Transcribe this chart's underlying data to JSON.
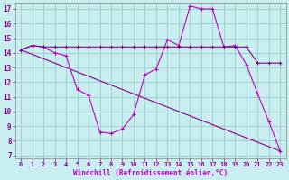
{
  "xlabel": "Windchill (Refroidissement éolien,°C)",
  "bg_color": "#c8eef0",
  "line_color": "#bb00bb",
  "line_color2": "#880088",
  "grid_color": "#99cccc",
  "series1_x": [
    0,
    1,
    2,
    3,
    4,
    5,
    6,
    7,
    8,
    9,
    10,
    11,
    12,
    13,
    14,
    15,
    16,
    17,
    18,
    19,
    20,
    21,
    22,
    23
  ],
  "series1_y": [
    14.2,
    14.5,
    14.4,
    14.0,
    13.8,
    11.5,
    11.1,
    8.6,
    8.5,
    8.8,
    9.8,
    12.5,
    12.9,
    14.9,
    14.5,
    17.2,
    17.0,
    17.0,
    14.4,
    14.5,
    13.2,
    11.2,
    9.3,
    7.3
  ],
  "series2_x": [
    0,
    1,
    2,
    3,
    4,
    5,
    6,
    7,
    8,
    9,
    10,
    11,
    12,
    13,
    14,
    15,
    16,
    17,
    18,
    19,
    20,
    21,
    22,
    23
  ],
  "series2_y": [
    14.2,
    14.5,
    14.4,
    14.4,
    14.4,
    14.4,
    14.4,
    14.4,
    14.4,
    14.4,
    14.4,
    14.4,
    14.4,
    14.4,
    14.4,
    14.4,
    14.4,
    14.4,
    14.4,
    14.4,
    14.4,
    13.3,
    13.3,
    13.3
  ],
  "series3_x": [
    0,
    23
  ],
  "series3_y": [
    14.2,
    7.3
  ],
  "ylim": [
    7,
    17
  ],
  "xlim": [
    0,
    23
  ],
  "yticks": [
    7,
    8,
    9,
    10,
    11,
    12,
    13,
    14,
    15,
    16,
    17
  ],
  "xticks": [
    0,
    1,
    2,
    3,
    4,
    5,
    6,
    7,
    8,
    9,
    10,
    11,
    12,
    13,
    14,
    15,
    16,
    17,
    18,
    19,
    20,
    21,
    22,
    23
  ],
  "tick_fontsize": 5.0,
  "xlabel_fontsize": 5.5
}
